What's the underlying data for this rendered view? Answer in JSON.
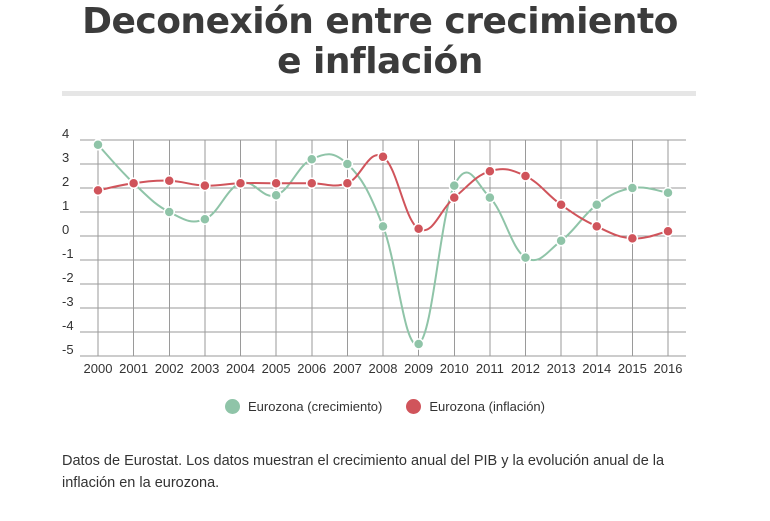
{
  "title": "Deconexión entre crecimiento e inflación",
  "note": "Datos de Eurostat. Los datos muestran el crecimiento anual del PIB y la evolución anual de la inflación en la eurozona.",
  "colors": {
    "crecimiento": "#8fc4a8",
    "inflacion": "#d0545b",
    "grid": "#9a9a9a"
  },
  "chart_data": {
    "type": "line",
    "x": [
      "2000",
      "2001",
      "2002",
      "2003",
      "2004",
      "2005",
      "2006",
      "2007",
      "2008",
      "2009",
      "2010",
      "2011",
      "2012",
      "2013",
      "2014",
      "2015",
      "2016"
    ],
    "ylim": [
      -5,
      4
    ],
    "yticks": [
      "4",
      "3",
      "2",
      "1",
      "0",
      "-1",
      "-2",
      "-3",
      "-4",
      "-5"
    ],
    "grid": true,
    "legend_position": "bottom",
    "series": [
      {
        "name": "Eurozona (crecimiento)",
        "values": [
          3.8,
          2.2,
          1.0,
          0.7,
          2.2,
          1.7,
          3.2,
          3.0,
          0.4,
          -4.5,
          2.1,
          1.6,
          -0.9,
          -0.2,
          1.3,
          2.0,
          1.8
        ]
      },
      {
        "name": "Eurozona (inflación)",
        "values": [
          1.9,
          2.2,
          2.3,
          2.1,
          2.2,
          2.2,
          2.2,
          2.2,
          3.3,
          0.3,
          1.6,
          2.7,
          2.5,
          1.3,
          0.4,
          -0.1,
          0.2
        ]
      }
    ]
  }
}
